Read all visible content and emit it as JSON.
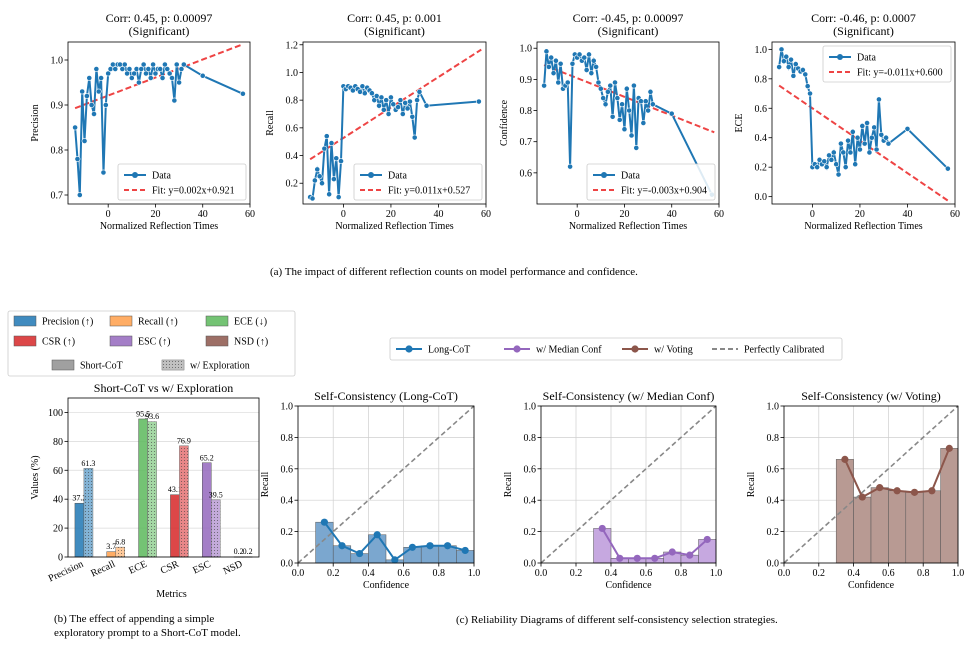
{
  "colors": {
    "blue": "#1f77b4",
    "red": "#d62728",
    "fit_red": "#ee4444",
    "orange": "#ff9f4a",
    "green": "#5cb85c",
    "brown": "#8c564b",
    "purple": "#9467bd",
    "gray": "#888888",
    "bar_blue": "#7ba7cf",
    "bar_purple": "#c6a8e0",
    "bar_brown": "#b89a93"
  },
  "captions": {
    "a": "(a) The impact of different reflection counts on model performance and confidence.",
    "b_line1": "(b) The effect of appending a simple",
    "b_line2": "exploratory prompt to a Short-CoT model.",
    "c": "(c) Reliability Diagrams of different self-consistency selection strategies."
  },
  "chart_data": [
    {
      "id": "precision",
      "type": "line",
      "title": "Corr: 0.45, p: 0.00097",
      "subtitle": "(Significant)",
      "xlabel": "Normalized Reflection Times",
      "ylabel": "Precision",
      "xlim": [
        -17,
        60
      ],
      "ylim": [
        0.68,
        1.04
      ],
      "xticks": [
        0,
        20,
        40,
        60
      ],
      "yticks": [
        0.7,
        0.8,
        0.9,
        1.0
      ],
      "ytick_labels": [
        "0.7",
        "0.8",
        "0.9",
        "1.0"
      ],
      "legend": [
        "Data",
        "Fit: y=0.002x+0.921"
      ],
      "legend_loc": "lower right",
      "fit": {
        "slope": 0.002,
        "intercept": 0.921,
        "x_range": [
          -14,
          57
        ]
      },
      "x": [
        -14,
        -13,
        -12,
        -11,
        -10,
        -9,
        -8,
        -7,
        -6,
        -5,
        -4,
        -3,
        -2,
        -1,
        0,
        1,
        2,
        3,
        4,
        5,
        6,
        7,
        8,
        9,
        10,
        11,
        12,
        13,
        14,
        15,
        16,
        17,
        18,
        19,
        20,
        21,
        22,
        23,
        24,
        25,
        26,
        27,
        28,
        29,
        30,
        31,
        32,
        40,
        57
      ],
      "y": [
        0.85,
        0.78,
        0.7,
        0.93,
        0.82,
        0.92,
        0.96,
        0.9,
        0.88,
        0.98,
        0.93,
        0.96,
        0.75,
        0.9,
        0.97,
        0.98,
        0.99,
        0.98,
        0.99,
        0.99,
        0.98,
        0.99,
        0.97,
        0.98,
        0.96,
        0.97,
        0.98,
        0.95,
        0.98,
        0.99,
        0.97,
        0.98,
        0.96,
        0.99,
        0.97,
        0.98,
        0.98,
        0.96,
        0.99,
        0.98,
        0.97,
        0.96,
        0.91,
        0.99,
        0.95,
        0.98,
        0.99,
        0.965,
        0.925
      ]
    },
    {
      "id": "recall",
      "type": "line",
      "title": "Corr: 0.45, p: 0.001",
      "subtitle": "(Significant)",
      "xlabel": "Normalized Reflection Times",
      "ylabel": "Recall",
      "xlim": [
        -17,
        60
      ],
      "ylim": [
        0.05,
        1.22
      ],
      "xticks": [
        0,
        20,
        40,
        60
      ],
      "yticks": [
        0.2,
        0.4,
        0.6,
        0.8,
        1.0,
        1.2
      ],
      "ytick_labels": [
        "0.2",
        "0.4",
        "0.6",
        "0.8",
        "1.0",
        "1.2"
      ],
      "legend": [
        "Data",
        "Fit: y=0.011x+0.527"
      ],
      "legend_loc": "lower right",
      "fit": {
        "slope": 0.011,
        "intercept": 0.527,
        "x_range": [
          -14,
          58
        ]
      },
      "x": [
        -14,
        -13,
        -12,
        -11,
        -10,
        -9,
        -8,
        -7,
        -6,
        -5,
        -4,
        -3,
        -2,
        -1,
        0,
        1,
        2,
        3,
        4,
        5,
        6,
        7,
        8,
        9,
        10,
        11,
        12,
        13,
        14,
        15,
        16,
        17,
        18,
        19,
        20,
        21,
        22,
        23,
        24,
        25,
        26,
        27,
        28,
        29,
        30,
        31,
        32,
        35,
        57
      ],
      "y": [
        0.1,
        0.09,
        0.22,
        0.3,
        0.25,
        0.2,
        0.45,
        0.54,
        0.12,
        0.49,
        0.23,
        0.38,
        0.1,
        0.36,
        0.9,
        0.88,
        0.9,
        0.89,
        0.87,
        0.9,
        0.88,
        0.86,
        0.9,
        0.85,
        0.89,
        0.87,
        0.85,
        0.8,
        0.83,
        0.76,
        0.82,
        0.73,
        0.8,
        0.7,
        0.82,
        0.77,
        0.73,
        0.75,
        0.8,
        0.7,
        0.78,
        0.74,
        0.79,
        0.68,
        0.53,
        0.8,
        0.86,
        0.76,
        0.79
      ]
    },
    {
      "id": "confidence",
      "type": "line",
      "title": "Corr: -0.45, p: 0.00097",
      "subtitle": "(Significant)",
      "xlabel": "Normalized Reflection Times",
      "ylabel": "Confidence",
      "xlim": [
        -17,
        60
      ],
      "ylim": [
        0.5,
        1.02
      ],
      "xticks": [
        0,
        20,
        40,
        60
      ],
      "yticks": [
        0.6,
        0.7,
        0.8,
        0.9,
        1.0
      ],
      "ytick_labels": [
        "0.6",
        "0.7",
        "0.8",
        "0.9",
        "1.0"
      ],
      "legend": [
        "Data",
        "Fit: y=-0.003x+0.904"
      ],
      "legend_loc": "lower right",
      "fit": {
        "slope": -0.003,
        "intercept": 0.904,
        "x_range": [
          -14,
          58
        ]
      },
      "x": [
        -14,
        -13,
        -12,
        -11,
        -10,
        -9,
        -8,
        -7,
        -6,
        -5,
        -4,
        -3,
        -2,
        -1,
        0,
        1,
        2,
        3,
        4,
        5,
        6,
        7,
        8,
        9,
        10,
        11,
        12,
        13,
        14,
        15,
        16,
        17,
        18,
        19,
        20,
        21,
        22,
        23,
        24,
        25,
        26,
        27,
        28,
        29,
        30,
        31,
        32,
        40,
        57
      ],
      "y": [
        0.88,
        0.99,
        0.94,
        0.97,
        0.92,
        0.96,
        0.89,
        0.95,
        0.87,
        0.88,
        0.89,
        0.62,
        0.95,
        0.98,
        0.97,
        0.98,
        0.96,
        0.97,
        0.93,
        0.98,
        0.92,
        0.96,
        0.94,
        0.89,
        0.87,
        0.84,
        0.82,
        0.86,
        0.88,
        0.78,
        0.89,
        0.84,
        0.77,
        0.82,
        0.74,
        0.87,
        0.8,
        0.72,
        0.88,
        0.68,
        0.84,
        0.83,
        0.76,
        0.83,
        0.8,
        0.86,
        0.82,
        0.79,
        0.53
      ]
    },
    {
      "id": "ece",
      "type": "line",
      "title": "Corr: -0.46, p: 0.0007",
      "subtitle": "(Significant)",
      "xlabel": "Normalized Reflection Times",
      "ylabel": "ECE",
      "xlim": [
        -17,
        60
      ],
      "ylim": [
        -0.05,
        1.05
      ],
      "xticks": [
        0,
        20,
        40,
        60
      ],
      "yticks": [
        0.0,
        0.2,
        0.4,
        0.6,
        0.8,
        1.0
      ],
      "ytick_labels": [
        "0.0",
        "0.2",
        "0.4",
        "0.6",
        "0.8",
        "1.0"
      ],
      "legend": [
        "Data",
        "Fit: y=-0.011x+0.600"
      ],
      "legend_loc": "upper right",
      "fit": {
        "slope": -0.011,
        "intercept": 0.6,
        "x_range": [
          -14,
          58
        ]
      },
      "x": [
        -14,
        -13,
        -12,
        -11,
        -10,
        -9,
        -8,
        -7,
        -6,
        -5,
        -4,
        -3,
        -2,
        -1,
        0,
        1,
        2,
        3,
        4,
        5,
        6,
        7,
        8,
        9,
        10,
        11,
        12,
        13,
        14,
        15,
        16,
        17,
        18,
        19,
        20,
        21,
        22,
        23,
        24,
        25,
        26,
        27,
        28,
        29,
        30,
        31,
        32,
        40,
        57
      ],
      "y": [
        0.88,
        1.0,
        0.92,
        0.95,
        0.88,
        0.93,
        0.82,
        0.9,
        0.87,
        0.85,
        0.86,
        0.83,
        0.75,
        0.7,
        0.2,
        0.22,
        0.2,
        0.25,
        0.22,
        0.24,
        0.2,
        0.28,
        0.25,
        0.3,
        0.22,
        0.15,
        0.36,
        0.3,
        0.2,
        0.38,
        0.3,
        0.44,
        0.22,
        0.4,
        0.32,
        0.48,
        0.36,
        0.5,
        0.3,
        0.4,
        0.47,
        0.32,
        0.66,
        0.42,
        0.38,
        0.4,
        0.36,
        0.46,
        0.19
      ]
    },
    {
      "id": "short_cot_bars",
      "type": "bar",
      "title": "Short-CoT vs w/ Exploration",
      "xlabel": "Metrics",
      "ylabel": "Values (%)",
      "categories": [
        "Precision",
        "Recall",
        "ECE",
        "CSR",
        "ESC",
        "NSD"
      ],
      "ylim": [
        0,
        110
      ],
      "yticks": [
        0,
        20,
        40,
        60,
        80,
        100
      ],
      "ytick_labels": [
        "0",
        "20",
        "40",
        "60",
        "80",
        "100"
      ],
      "series": [
        {
          "name": "Short-CoT",
          "values": [
            37.2,
            3.7,
            95.5,
            43.1,
            65.2,
            0.2
          ],
          "labels": [
            "37.2",
            "3.7",
            "95.5",
            "43.1",
            "65.2",
            "0.2"
          ]
        },
        {
          "name": "w/ Exploration",
          "values": [
            61.3,
            6.8,
            93.6,
            76.9,
            39.5,
            0.2
          ],
          "labels": [
            "61.3",
            "6.8",
            "93.6",
            "76.9",
            "39.5",
            "0.2"
          ]
        }
      ],
      "legend": [
        "Precision (↑)",
        "Recall (↑)",
        "ECE (↓)",
        "CSR (↑)",
        "ESC (↑)",
        "NSD (↑)",
        "Short-CoT",
        "w/ Exploration"
      ]
    },
    {
      "id": "rel_long",
      "type": "bar",
      "title": "Self-Consistency (Long-CoT)",
      "xlabel": "Confidence",
      "ylabel": "Recall",
      "xlim": [
        0,
        1
      ],
      "ylim": [
        0,
        1
      ],
      "ticks": [
        0.0,
        0.2,
        0.4,
        0.6,
        0.8,
        1.0
      ],
      "tick_labels": [
        "0.0",
        "0.2",
        "0.4",
        "0.6",
        "0.8",
        "1.0"
      ],
      "bin_width": 0.1,
      "x": [
        0.15,
        0.25,
        0.35,
        0.45,
        0.55,
        0.65,
        0.75,
        0.85,
        0.95
      ],
      "y": [
        0.26,
        0.11,
        0.06,
        0.18,
        0.02,
        0.1,
        0.11,
        0.11,
        0.08
      ]
    },
    {
      "id": "rel_median",
      "type": "bar",
      "title": "Self-Consistency (w/ Median Conf)",
      "xlabel": "Confidence",
      "ylabel": "Recall",
      "xlim": [
        0,
        1
      ],
      "ylim": [
        0,
        1
      ],
      "ticks": [
        0.0,
        0.2,
        0.4,
        0.6,
        0.8,
        1.0
      ],
      "tick_labels": [
        "0.0",
        "0.2",
        "0.4",
        "0.6",
        "0.8",
        "1.0"
      ],
      "bin_width": 0.1,
      "x": [
        0.35,
        0.45,
        0.55,
        0.65,
        0.75,
        0.85,
        0.95
      ],
      "y": [
        0.22,
        0.03,
        0.03,
        0.03,
        0.07,
        0.05,
        0.15
      ]
    },
    {
      "id": "rel_voting",
      "type": "bar",
      "title": "Self-Consistency (w/ Voting)",
      "xlabel": "Confidence",
      "ylabel": "Recall",
      "xlim": [
        0,
        1
      ],
      "ylim": [
        0,
        1
      ],
      "ticks": [
        0.0,
        0.2,
        0.4,
        0.6,
        0.8,
        1.0
      ],
      "tick_labels": [
        "0.0",
        "0.2",
        "0.4",
        "0.6",
        "0.8",
        "1.0"
      ],
      "bin_width": 0.1,
      "x": [
        0.35,
        0.45,
        0.55,
        0.65,
        0.75,
        0.85,
        0.95
      ],
      "y": [
        0.66,
        0.42,
        0.48,
        0.46,
        0.45,
        0.46,
        0.73
      ]
    }
  ],
  "reliability_legend": [
    "Long-CoT",
    "w/ Median Conf",
    "w/ Voting",
    "Perfectly Calibrated"
  ]
}
